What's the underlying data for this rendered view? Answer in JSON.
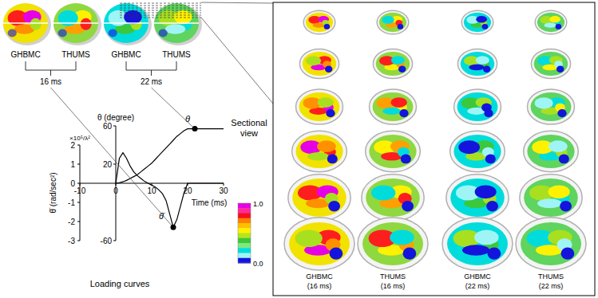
{
  "chart_data": {
    "type": "line",
    "title": "Loading curves",
    "x_label": "Time (ms)",
    "y_label": "θ̈ (rad/sec²)",
    "y_unit": "×10⁵/λ²",
    "y2_label": "θ (degree)",
    "x": [
      0,
      1,
      2,
      3,
      4,
      5,
      6,
      7,
      8,
      9,
      10,
      11,
      12,
      13,
      14,
      15,
      16,
      17,
      18,
      19,
      20,
      21,
      22,
      23,
      24,
      25,
      26,
      27,
      28,
      29,
      30
    ],
    "series": [
      {
        "name": "θ",
        "color": "#000000",
        "axis": "y2",
        "values": [
          0,
          0.5,
          1.5,
          3,
          5,
          7,
          9,
          12,
          15,
          18,
          21,
          25,
          29,
          33,
          37,
          41,
          45,
          49,
          52,
          55,
          57,
          57,
          57,
          57,
          57,
          57,
          57,
          57,
          57,
          57,
          57
        ]
      },
      {
        "name": "θ̈",
        "color": "#000000",
        "values": [
          0,
          1.3,
          1.6,
          1.3,
          0.9,
          0.6,
          0.4,
          0.25,
          0.1,
          0,
          -0.1,
          -0.2,
          -0.35,
          -0.55,
          -0.9,
          -1.6,
          -2.3,
          -1.9,
          -1.2,
          -0.5,
          0,
          0,
          0,
          0,
          0,
          0,
          0,
          0,
          0,
          0,
          0
        ]
      }
    ],
    "xlim": [
      -10,
      30
    ],
    "xticks": [
      -10,
      0,
      10,
      20,
      30
    ],
    "ylim": [
      -3,
      2
    ],
    "yticks": [
      -3,
      -2,
      -1,
      0,
      1,
      2
    ],
    "y2lim": [
      -60,
      60
    ],
    "y2ticks": [
      -60,
      20,
      60
    ],
    "annotations": [
      {
        "text": "16 ms",
        "x": 16,
        "series": "θ̈"
      },
      {
        "text": "22 ms",
        "x": 22,
        "series": "θ"
      }
    ]
  },
  "figure": {
    "section_title": "Sectional view",
    "panels": [
      {
        "model": "GHBMC",
        "section_time": "(16 ms)",
        "colors": [
          "#f2e200",
          "#ff1e1e",
          "#e600e6",
          "#ff9000",
          "#a8e020",
          "#1414dc"
        ]
      },
      {
        "model": "THUMS",
        "section_time": "(16 ms)",
        "colors": [
          "#8fd840",
          "#fff200",
          "#ffa000",
          "#ff1e1e",
          "#00dcdc",
          "#1414dc"
        ]
      },
      {
        "model": "GHBMC",
        "section_time": "(22 ms)",
        "colors": [
          "#00dcdc",
          "#3cc83c",
          "#a8e020",
          "#9ff5f5",
          "#1414dc",
          "#1414dc"
        ]
      },
      {
        "model": "THUMS",
        "section_time": "(22 ms)",
        "colors": [
          "#5fd45f",
          "#00dcdc",
          "#a8e020",
          "#fff200",
          "#9ff5f5",
          "#1414dc"
        ]
      }
    ],
    "colorbar": {
      "range": [
        0,
        1
      ],
      "ticks": [
        {
          "value": 0,
          "label": "0.0"
        },
        {
          "value": 1,
          "label": "1.0"
        }
      ],
      "colors": [
        "#e600e6",
        "#ff2a9a",
        "#f5101e",
        "#ff8000",
        "#ffc000",
        "#fff200",
        "#b6e51c",
        "#3cc83c",
        "#7fe87f",
        "#00dcdc",
        "#9ff5f5",
        "#1414dc"
      ]
    }
  }
}
